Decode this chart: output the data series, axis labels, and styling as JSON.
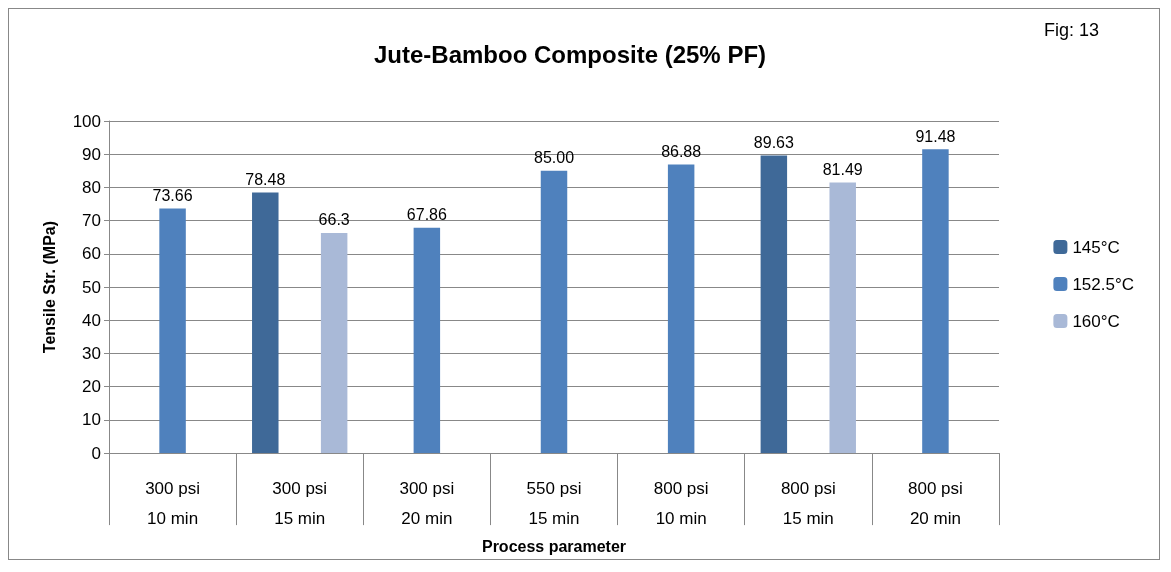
{
  "chart_data": {
    "type": "bar",
    "title": "Jute-Bamboo Composite (25% PF)",
    "xlabel": "Process parameter",
    "ylabel": "Tensile Str. (MPa)",
    "categories": [
      "300 psi\n10 min",
      "300 psi\n15 min",
      "300 psi\n20 min",
      "550 psi\n15 min",
      "800 psi\n10 min",
      "800 psi\n15 min",
      "800 psi\n20 min"
    ],
    "series": [
      {
        "name": "145°C",
        "color": "#3f6998",
        "values": [
          null,
          78.48,
          null,
          null,
          null,
          89.63,
          null
        ],
        "value_labels": [
          null,
          "78.48",
          null,
          null,
          null,
          "89.63",
          null
        ]
      },
      {
        "name": "152.5°C",
        "color": "#4f81bd",
        "values": [
          73.66,
          null,
          67.86,
          85.0,
          86.88,
          null,
          91.48
        ],
        "value_labels": [
          "73.66",
          null,
          "67.86",
          "85.00",
          "86.88",
          null,
          "91.48"
        ]
      },
      {
        "name": "160°C",
        "color": "#a9b9d7",
        "values": [
          null,
          66.3,
          null,
          null,
          null,
          81.49,
          null
        ],
        "value_labels": [
          null,
          "66.3",
          null,
          null,
          null,
          "81.49",
          null
        ]
      }
    ],
    "ylim": [
      0,
      100
    ],
    "yticks": [
      0,
      10,
      20,
      30,
      40,
      50,
      60,
      70,
      80,
      90,
      100
    ],
    "grid": "y",
    "legend": "right",
    "annotations": [
      "Fig: 13"
    ]
  }
}
